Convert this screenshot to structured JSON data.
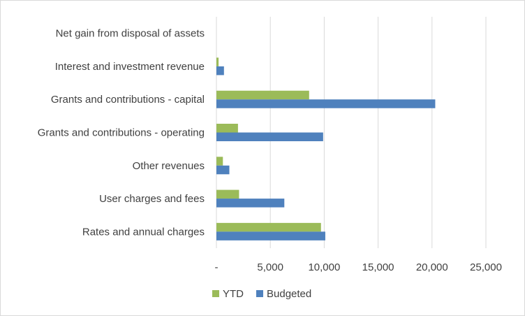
{
  "chart_data": {
    "type": "bar",
    "orientation": "horizontal",
    "title": "",
    "xlabel": "",
    "ylabel": "",
    "categories": [
      "Net gain from disposal of assets",
      "Interest and investment revenue",
      "Grants and contributions - capital",
      "Grants and contributions - operating",
      "Other revenues",
      "User charges and fees",
      "Rates and annual charges"
    ],
    "series": [
      {
        "name": "YTD",
        "color": "#9bbb59",
        "values": [
          0,
          200,
          8600,
          2000,
          600,
          2100,
          9700
        ]
      },
      {
        "name": "Budgeted",
        "color": "#4f81bd",
        "values": [
          0,
          700,
          20300,
          9900,
          1200,
          6300,
          10100
        ]
      }
    ],
    "xlim": [
      0,
      25000
    ],
    "ticks": [
      0,
      5000,
      10000,
      15000,
      20000,
      25000
    ],
    "tick_labels": [
      "-",
      "5,000",
      "10,000",
      "15,000",
      "20,000",
      "25,000"
    ],
    "grid": true,
    "legend_position": "bottom"
  }
}
